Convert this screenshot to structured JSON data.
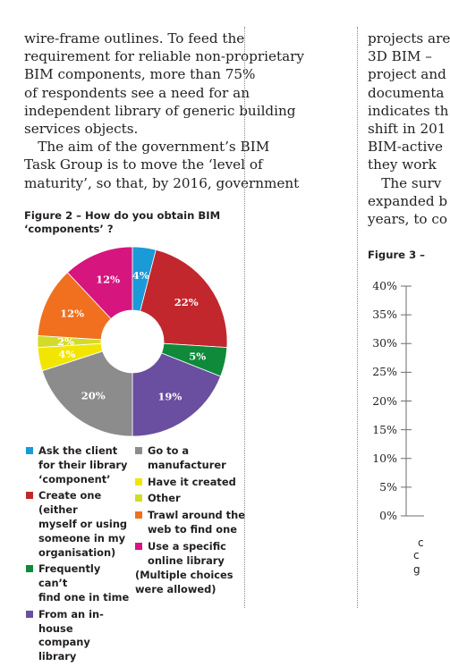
{
  "left_text": {
    "lines": [
      "wire-frame outlines. To feed the",
      "requirement for reliable non-proprietary",
      "BIM components, more than 75%",
      "of respondents see a need for an",
      "independent library of generic building",
      "services objects.",
      " The aim of the government’s BIM",
      "Task Group is to move the ‘level of",
      "maturity’, so that, by 2016, government"
    ]
  },
  "right_text": {
    "lines": [
      "projects are",
      "3D BIM –",
      "project and",
      "documenta",
      "indicates th",
      "shift in 201",
      "BIM-active",
      "they work",
      " The surv",
      "expanded b",
      "years, to co"
    ]
  },
  "figure2": {
    "title": "Figure 2 – How do you obtain BIM ‘components’ ?",
    "chart_data": {
      "type": "pie",
      "title": "Figure 2 – How do you obtain BIM ‘components’ ?",
      "slices": [
        {
          "label": "Ask the client for their library ‘component’",
          "value": 4,
          "display": "4%",
          "color": "#1a9ad6"
        },
        {
          "label": "Create one (either myself or using someone in my organisation)",
          "value": 22,
          "display": "22%",
          "color": "#c1272d"
        },
        {
          "label": "Frequently can’t find one in time",
          "value": 5,
          "display": "5%",
          "color": "#0e8a3a"
        },
        {
          "label": "From an in-house company library",
          "value": 19,
          "display": "19%",
          "color": "#6a4ea0"
        },
        {
          "label": "Go to a manufacturer",
          "value": 20,
          "display": "20%",
          "color": "#8c8c8c"
        },
        {
          "label": "Have it created",
          "value": 4,
          "display": "4%",
          "color": "#f2e500"
        },
        {
          "label": "Other",
          "value": 2,
          "display": "2%",
          "color": "#d2dc28"
        },
        {
          "label": "Trawl around the web to find one",
          "value": 12,
          "display": "12%",
          "color": "#f07020"
        },
        {
          "label": "Use a specific online library",
          "value": 12,
          "display": "12%",
          "color": "#d6157f"
        }
      ]
    },
    "legend_left": [
      {
        "label": "Ask the client\nfor their library\n‘component’",
        "color": "#1a9ad6"
      },
      {
        "label": "Create one (either\nmyself or using\nsomeone in my\norganisation)",
        "color": "#c1272d"
      },
      {
        "label": "Frequently can’t\nfind one in time",
        "color": "#0e8a3a"
      },
      {
        "label": "From an in-house\ncompany library",
        "color": "#6a4ea0"
      }
    ],
    "legend_right": [
      {
        "label": "Go to a\nmanufacturer",
        "color": "#8c8c8c"
      },
      {
        "label": "Have it created",
        "color": "#f2e500"
      },
      {
        "label": "Other",
        "color": "#d2dc28"
      },
      {
        "label": "Trawl around the\nweb to find one",
        "color": "#f07020"
      },
      {
        "label": "Use a specific\nonline library",
        "color": "#d6157f"
      }
    ],
    "note": "(Multiple choices\nwere allowed)"
  },
  "figure3": {
    "title": "Figure 3 –",
    "y_ticks": [
      "40%",
      "35%",
      "30%",
      "25%",
      "20%",
      "15%",
      "10%",
      "5%",
      "0%"
    ],
    "fragments": [
      "c",
      "c",
      "g"
    ]
  }
}
